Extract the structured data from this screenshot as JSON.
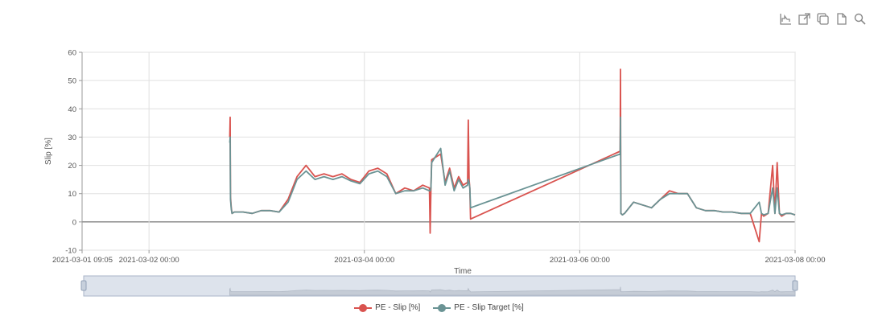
{
  "toolbox": [
    {
      "name": "line-chart-icon"
    },
    {
      "name": "export-icon"
    },
    {
      "name": "copy-icon"
    },
    {
      "name": "document-icon"
    },
    {
      "name": "zoom-icon"
    }
  ],
  "chart_data": {
    "type": "line",
    "title": "",
    "xlabel": "Time",
    "ylabel": "Slip [%]",
    "ylim": [
      -10,
      60
    ],
    "yticks": [
      -10,
      0,
      10,
      20,
      30,
      40,
      50,
      60
    ],
    "xlim": [
      "2021-03-01 09:05",
      "2021-03-08 00:00"
    ],
    "xticks": [
      "2021-03-01 09:05",
      "2021-03-02 00:00",
      "2021-03-04 00:00",
      "2021-03-06 00:00",
      "2021-03-08 00:00"
    ],
    "grid": true,
    "legend_position": "bottom",
    "series": [
      {
        "name": "PE - Slip [%]",
        "color": "#d9534f",
        "x": [
          "2021-03-02 18:00",
          "2021-03-02 18:05",
          "2021-03-02 18:10",
          "2021-03-02 18:20",
          "2021-03-02 18:30",
          "2021-03-02 19:00",
          "2021-03-02 21:00",
          "2021-03-02 23:00",
          "2021-03-03 01:00",
          "2021-03-03 03:00",
          "2021-03-03 05:00",
          "2021-03-03 07:00",
          "2021-03-03 09:00",
          "2021-03-03 11:00",
          "2021-03-03 13:00",
          "2021-03-03 15:00",
          "2021-03-03 17:00",
          "2021-03-03 19:00",
          "2021-03-03 21:00",
          "2021-03-03 23:00",
          "2021-03-04 01:00",
          "2021-03-04 03:00",
          "2021-03-04 05:00",
          "2021-03-04 07:00",
          "2021-03-04 09:00",
          "2021-03-04 11:00",
          "2021-03-04 13:00",
          "2021-03-04 14:30",
          "2021-03-04 14:40",
          "2021-03-04 14:50",
          "2021-03-04 15:00",
          "2021-03-04 17:00",
          "2021-03-04 18:00",
          "2021-03-04 19:00",
          "2021-03-04 20:00",
          "2021-03-04 21:00",
          "2021-03-04 22:00",
          "2021-03-04 23:00",
          "2021-03-04 23:10",
          "2021-03-04 23:20",
          "2021-03-04 23:30",
          "2021-03-04 23:40",
          "2021-03-06 09:00",
          "2021-03-06 09:05",
          "2021-03-06 09:10",
          "2021-03-06 09:30",
          "2021-03-06 10:00",
          "2021-03-06 12:00",
          "2021-03-06 14:00",
          "2021-03-06 16:00",
          "2021-03-06 18:00",
          "2021-03-06 20:00",
          "2021-03-06 22:00",
          "2021-03-07 00:00",
          "2021-03-07 02:00",
          "2021-03-07 04:00",
          "2021-03-07 06:00",
          "2021-03-07 08:00",
          "2021-03-07 10:00",
          "2021-03-07 12:00",
          "2021-03-07 14:00",
          "2021-03-07 16:00",
          "2021-03-07 16:30",
          "2021-03-07 17:00",
          "2021-03-07 18:00",
          "2021-03-07 19:00",
          "2021-03-07 19:30",
          "2021-03-07 20:00",
          "2021-03-07 20:30",
          "2021-03-07 21:00",
          "2021-03-07 22:00",
          "2021-03-07 23:00",
          "2021-03-08 00:00"
        ],
        "y": [
          30,
          37,
          9,
          5,
          3,
          3.5,
          3.5,
          3,
          4,
          4,
          3.5,
          8,
          16,
          20,
          16,
          17,
          16,
          17,
          15,
          14,
          18,
          19,
          17,
          10,
          12,
          11,
          13,
          12,
          -4,
          12,
          22,
          24,
          14,
          19,
          12,
          16,
          13,
          14,
          36,
          15,
          12,
          1,
          25,
          54,
          3,
          2.5,
          3,
          7,
          6,
          5,
          8,
          11,
          10,
          10,
          5,
          4,
          4,
          3.5,
          3.5,
          3,
          3,
          -7,
          3,
          2,
          3,
          20,
          3,
          21,
          3,
          2,
          3,
          3,
          2.5
        ]
      },
      {
        "name": "PE - Slip Target [%]",
        "color": "#6a9394",
        "x": [
          "2021-03-02 18:00",
          "2021-03-02 18:05",
          "2021-03-02 18:10",
          "2021-03-02 18:20",
          "2021-03-02 18:30",
          "2021-03-02 19:00",
          "2021-03-02 21:00",
          "2021-03-02 23:00",
          "2021-03-03 01:00",
          "2021-03-03 03:00",
          "2021-03-03 05:00",
          "2021-03-03 07:00",
          "2021-03-03 09:00",
          "2021-03-03 11:00",
          "2021-03-03 13:00",
          "2021-03-03 15:00",
          "2021-03-03 17:00",
          "2021-03-03 19:00",
          "2021-03-03 21:00",
          "2021-03-03 23:00",
          "2021-03-04 01:00",
          "2021-03-04 03:00",
          "2021-03-04 05:00",
          "2021-03-04 07:00",
          "2021-03-04 09:00",
          "2021-03-04 11:00",
          "2021-03-04 13:00",
          "2021-03-04 14:30",
          "2021-03-04 14:40",
          "2021-03-04 14:50",
          "2021-03-04 15:00",
          "2021-03-04 17:00",
          "2021-03-04 18:00",
          "2021-03-04 19:00",
          "2021-03-04 20:00",
          "2021-03-04 21:00",
          "2021-03-04 22:00",
          "2021-03-04 23:00",
          "2021-03-04 23:10",
          "2021-03-04 23:20",
          "2021-03-04 23:30",
          "2021-03-04 23:40",
          "2021-03-06 09:00",
          "2021-03-06 09:05",
          "2021-03-06 09:10",
          "2021-03-06 09:30",
          "2021-03-06 10:00",
          "2021-03-06 12:00",
          "2021-03-06 14:00",
          "2021-03-06 16:00",
          "2021-03-06 18:00",
          "2021-03-06 20:00",
          "2021-03-06 22:00",
          "2021-03-07 00:00",
          "2021-03-07 02:00",
          "2021-03-07 04:00",
          "2021-03-07 06:00",
          "2021-03-07 08:00",
          "2021-03-07 10:00",
          "2021-03-07 12:00",
          "2021-03-07 14:00",
          "2021-03-07 16:00",
          "2021-03-07 16:30",
          "2021-03-07 17:00",
          "2021-03-07 18:00",
          "2021-03-07 19:00",
          "2021-03-07 19:30",
          "2021-03-07 20:00",
          "2021-03-07 20:30",
          "2021-03-07 21:00",
          "2021-03-07 22:00",
          "2021-03-07 23:00",
          "2021-03-08 00:00"
        ],
        "y": [
          28,
          30,
          8,
          4.5,
          3,
          3.5,
          3.5,
          3,
          4,
          4,
          3.5,
          7,
          15,
          18,
          15,
          16,
          15,
          16,
          14.5,
          13.5,
          17,
          18,
          16,
          10,
          11,
          11,
          12,
          11,
          11,
          12,
          21,
          26,
          13,
          18,
          11,
          15,
          12,
          13,
          15,
          14,
          12,
          5,
          24,
          37,
          3,
          2.5,
          3,
          7,
          6,
          5,
          8,
          10,
          10,
          10,
          5,
          4,
          4,
          3.5,
          3.5,
          3,
          3,
          7,
          3,
          2.5,
          3,
          12,
          3,
          12,
          3,
          2.5,
          3,
          3,
          2.5
        ]
      }
    ]
  },
  "legend": [
    {
      "label": "PE - Slip [%]",
      "color": "#d9534f"
    },
    {
      "label": "PE - Slip Target [%]",
      "color": "#6a9394"
    }
  ]
}
